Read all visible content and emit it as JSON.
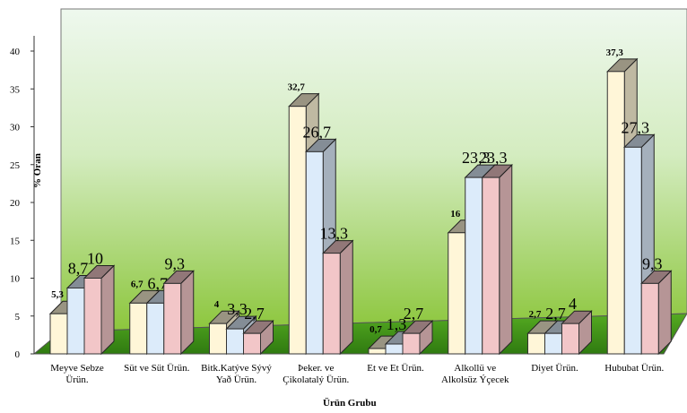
{
  "chart_data": {
    "type": "bar3d",
    "y_label": "% Oran",
    "x_label": "Ürün Grubu",
    "categories": [
      "Meyve Sebze Ürün.",
      "Süt ve Süt Ürün.",
      "Bitk.Katýve Sývý Yað Ürün.",
      "Þeker. ve Çikolatalý Ürün.",
      "Et ve Et Ürün.",
      "Alkollü ve Alkolsüz Ýçecek",
      "Diyet Ürün.",
      "Hububat Ürün."
    ],
    "series": [
      {
        "color": "#fff6d8",
        "values": [
          5.3,
          6.7,
          4,
          32.7,
          0.7,
          16,
          2.7,
          37.3
        ],
        "value_labels": [
          "5,3",
          "6,7",
          "4",
          "32,7",
          "0,7",
          "16",
          "2,7",
          "37,3"
        ]
      },
      {
        "color": "#dcebfa",
        "values": [
          8.7,
          6.7,
          3.3,
          26.7,
          1.3,
          23.3,
          2.7,
          27.3
        ],
        "value_labels": [
          "8,7",
          "6,7",
          "3,3",
          "26,7",
          "1,3",
          "23,3",
          "2,7",
          "27,3"
        ]
      },
      {
        "color": "#f2c6c8",
        "values": [
          10,
          9.3,
          2.7,
          13.3,
          2.7,
          23.3,
          4,
          9.3
        ],
        "value_labels": [
          "10",
          "9,3",
          "2,7",
          "13,3",
          "2,7",
          "23,3",
          "4",
          "9,3"
        ]
      }
    ],
    "ylim": [
      0,
      45
    ],
    "yticks": [
      0,
      5,
      10,
      15,
      20,
      25,
      30,
      35,
      40
    ]
  }
}
